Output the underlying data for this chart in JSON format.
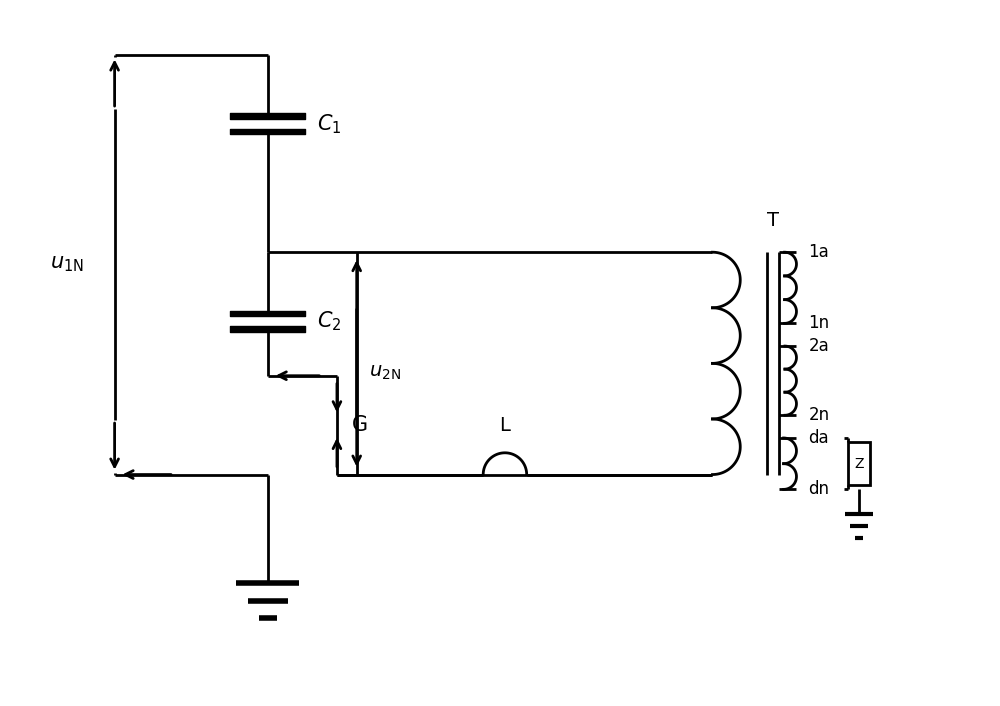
{
  "bg_color": "#ffffff",
  "line_color": "#000000",
  "lw": 2.0,
  "fig_width": 10.0,
  "fig_height": 7.06,
  "xlim": [
    0,
    10
  ],
  "ylim": [
    0,
    7.06
  ]
}
